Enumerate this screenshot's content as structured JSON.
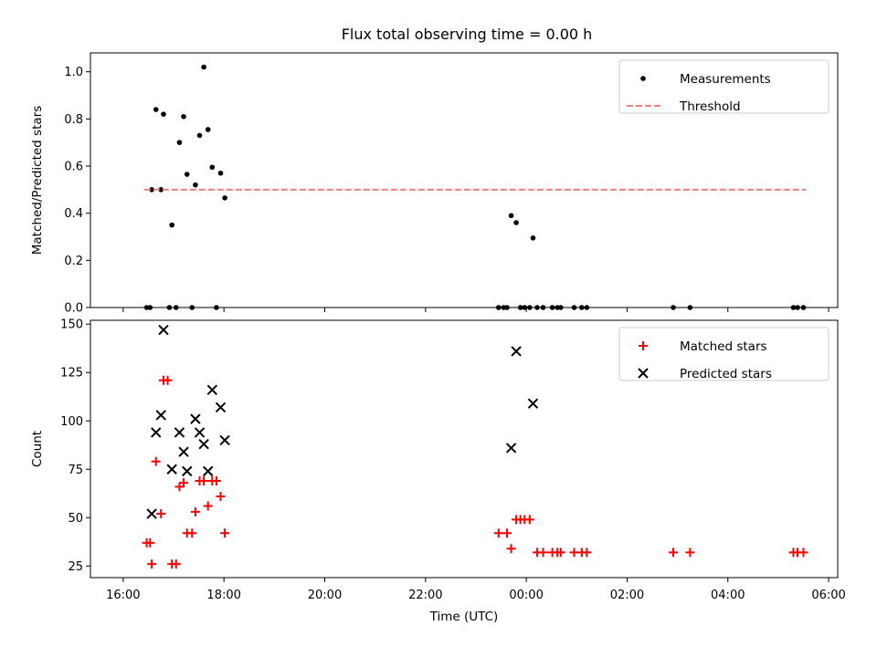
{
  "chart_data": [
    {
      "type": "scatter",
      "title": "Flux total observing time = 0.00 h",
      "xlabel": "",
      "ylabel": "Matched/Predicted stars",
      "xlim": [
        "16:00",
        "06:00"
      ],
      "ylim": [
        0,
        1.08
      ],
      "yticks": [
        0.0,
        0.2,
        0.4,
        0.6,
        0.8,
        1.0
      ],
      "ytick_labels": [
        "0.0",
        "0.2",
        "0.4",
        "0.6",
        "0.8",
        "1.0"
      ],
      "grid": false,
      "legend": "top-right",
      "series": [
        {
          "name": "Measurements",
          "kind": "point",
          "color": "#000000",
          "points": [
            [
              "16:28",
              0
            ],
            [
              "16:32",
              0
            ],
            [
              "16:34",
              0.5
            ],
            [
              "16:39",
              0.84
            ],
            [
              "16:45",
              0.5
            ],
            [
              "16:48",
              0.82
            ],
            [
              "16:55",
              0
            ],
            [
              "16:58",
              0.35
            ],
            [
              "17:03",
              0
            ],
            [
              "17:07",
              0.7
            ],
            [
              "17:12",
              0.81
            ],
            [
              "17:16",
              0.565
            ],
            [
              "17:22",
              0
            ],
            [
              "17:26",
              0.52
            ],
            [
              "17:31",
              0.73
            ],
            [
              "17:36",
              1.02
            ],
            [
              "17:41",
              0.755
            ],
            [
              "17:46",
              0.595
            ],
            [
              "17:51",
              0
            ],
            [
              "17:56",
              0.57
            ],
            [
              "18:01",
              0.465
            ],
            [
              "23:27",
              0
            ],
            [
              "23:33",
              0
            ],
            [
              "23:37",
              0
            ],
            [
              "23:42",
              0.39
            ],
            [
              "23:48",
              0.36
            ],
            [
              "23:53",
              0
            ],
            [
              "23:58",
              0
            ],
            [
              "00:04",
              0
            ],
            [
              "00:08",
              0.295
            ],
            [
              "00:13",
              0
            ],
            [
              "00:20",
              0
            ],
            [
              "00:31",
              0
            ],
            [
              "00:37",
              0
            ],
            [
              "00:41",
              0
            ],
            [
              "00:57",
              0
            ],
            [
              "01:06",
              0
            ],
            [
              "01:12",
              0
            ],
            [
              "02:55",
              0
            ],
            [
              "03:15",
              0
            ],
            [
              "05:18",
              0
            ],
            [
              "05:23",
              0
            ],
            [
              "05:30",
              0
            ]
          ]
        },
        {
          "name": "Threshold",
          "kind": "line",
          "color": "#f08080",
          "dash": true,
          "points": [
            [
              "16:25",
              0.5
            ],
            [
              "05:33",
              0.5
            ]
          ]
        }
      ]
    },
    {
      "type": "scatter",
      "title": "",
      "xlabel": "Time (UTC)",
      "ylabel": "Count",
      "xlim": [
        "16:00",
        "06:00"
      ],
      "ylim": [
        19,
        152
      ],
      "yticks": [
        25,
        50,
        75,
        100,
        125,
        150
      ],
      "ytick_labels": [
        "25",
        "50",
        "75",
        "100",
        "125",
        "150"
      ],
      "xticks": [
        "16:00",
        "18:00",
        "20:00",
        "22:00",
        "00:00",
        "02:00",
        "04:00",
        "06:00"
      ],
      "grid": false,
      "legend": "top-right",
      "series": [
        {
          "name": "Matched stars",
          "kind": "plus",
          "color": "#ff0000",
          "points": [
            [
              "16:28",
              37
            ],
            [
              "16:32",
              37
            ],
            [
              "16:34",
              26
            ],
            [
              "16:39",
              79
            ],
            [
              "16:45",
              52
            ],
            [
              "16:48",
              121
            ],
            [
              "16:53",
              121
            ],
            [
              "16:58",
              26
            ],
            [
              "17:03",
              26
            ],
            [
              "17:07",
              66
            ],
            [
              "17:12",
              68
            ],
            [
              "17:16",
              42
            ],
            [
              "17:22",
              42
            ],
            [
              "17:26",
              53
            ],
            [
              "17:31",
              69
            ],
            [
              "17:36",
              69
            ],
            [
              "17:41",
              56
            ],
            [
              "17:46",
              69
            ],
            [
              "17:51",
              69
            ],
            [
              "17:56",
              61
            ],
            [
              "18:01",
              42
            ],
            [
              "23:27",
              42
            ],
            [
              "23:37",
              42
            ],
            [
              "23:42",
              34
            ],
            [
              "23:48",
              49
            ],
            [
              "23:53",
              49
            ],
            [
              "23:58",
              49
            ],
            [
              "00:04",
              49
            ],
            [
              "00:13",
              32
            ],
            [
              "00:20",
              32
            ],
            [
              "00:31",
              32
            ],
            [
              "00:37",
              32
            ],
            [
              "00:41",
              32
            ],
            [
              "00:57",
              32
            ],
            [
              "01:06",
              32
            ],
            [
              "01:12",
              32
            ],
            [
              "02:55",
              32
            ],
            [
              "03:15",
              32
            ],
            [
              "05:18",
              32
            ],
            [
              "05:23",
              32
            ],
            [
              "05:30",
              32
            ]
          ]
        },
        {
          "name": "Predicted stars",
          "kind": "x",
          "color": "#000000",
          "points": [
            [
              "16:34",
              52
            ],
            [
              "16:39",
              94
            ],
            [
              "16:45",
              103
            ],
            [
              "16:48",
              147
            ],
            [
              "16:58",
              75
            ],
            [
              "17:07",
              94
            ],
            [
              "17:12",
              84
            ],
            [
              "17:16",
              74
            ],
            [
              "17:26",
              101
            ],
            [
              "17:31",
              94
            ],
            [
              "17:36",
              88
            ],
            [
              "17:41",
              74
            ],
            [
              "17:46",
              116
            ],
            [
              "17:56",
              107
            ],
            [
              "18:01",
              90
            ],
            [
              "23:42",
              86
            ],
            [
              "23:48",
              136
            ],
            [
              "00:08",
              109
            ]
          ]
        }
      ]
    }
  ]
}
